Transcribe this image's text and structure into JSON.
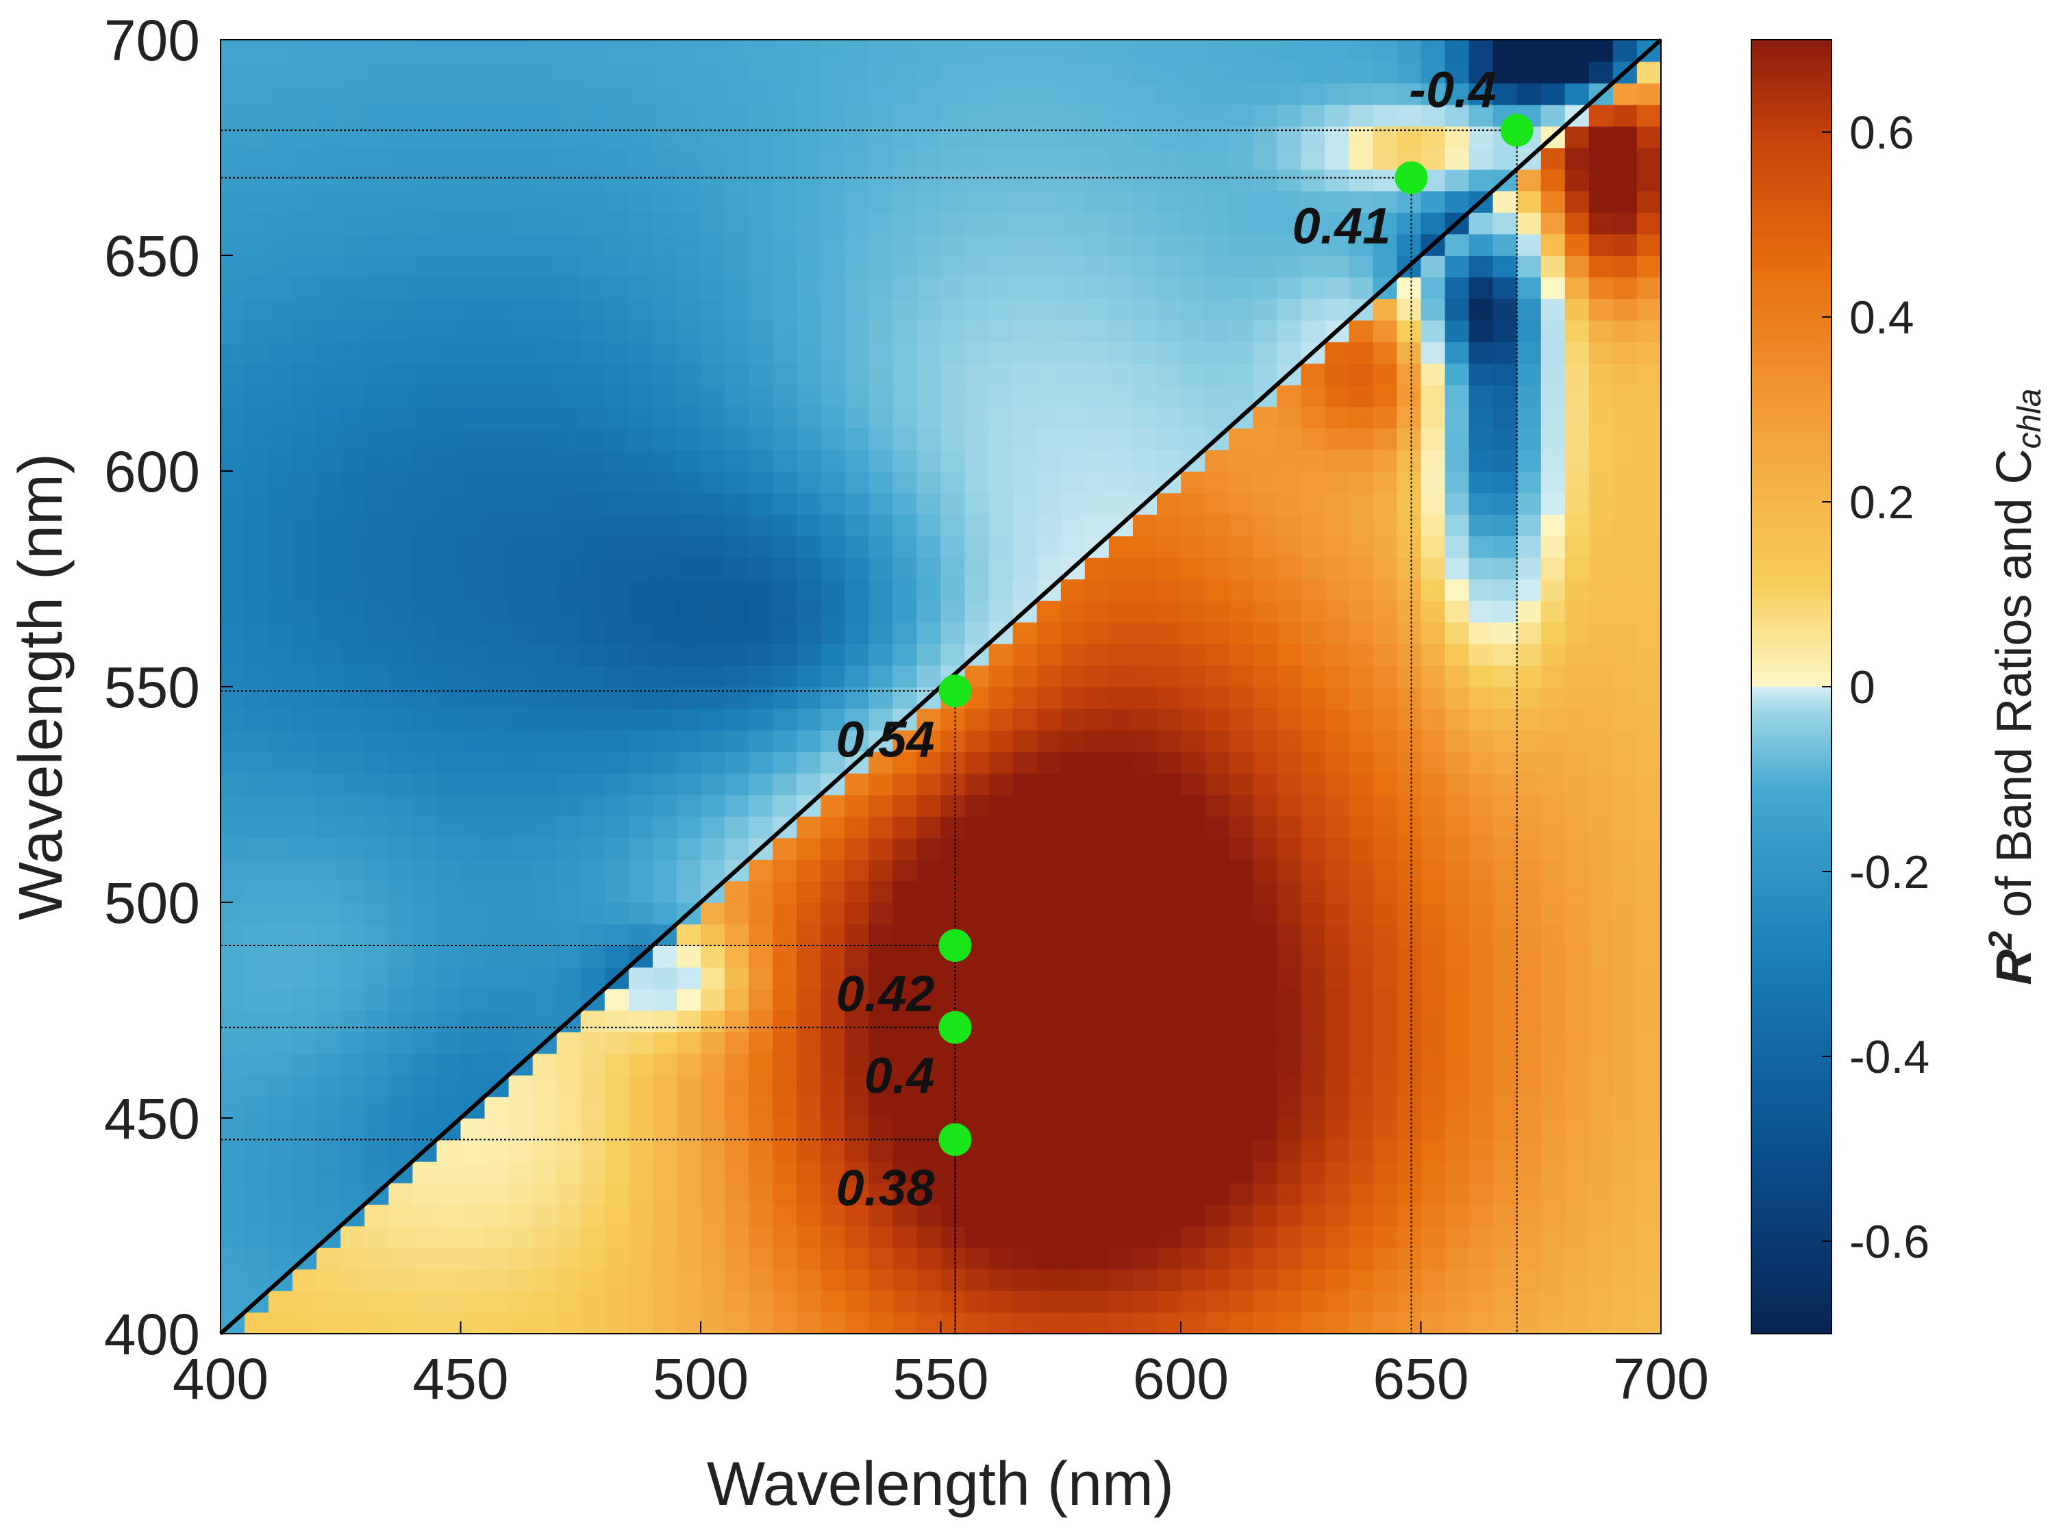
{
  "chart_data": {
    "type": "heatmap",
    "title": "",
    "xlabel": "Wavelength (nm)",
    "ylabel": "Wavelength (nm)",
    "xlim": [
      400,
      700
    ],
    "ylim": [
      400,
      700
    ],
    "x_ticks": [
      400,
      450,
      500,
      550,
      600,
      650,
      700
    ],
    "y_ticks": [
      400,
      450,
      500,
      550,
      600,
      650,
      700
    ],
    "diagonal_line": {
      "from": [
        400,
        400
      ],
      "to": [
        700,
        700
      ]
    },
    "colorbar": {
      "label_prefix": "R",
      "label_sup": "2",
      "label_mid": " of Band Ratios and C",
      "label_sub": "chla",
      "range": [
        -0.7,
        0.7
      ],
      "ticks": [
        -0.6,
        -0.4,
        -0.2,
        0,
        0.2,
        0.4,
        0.6
      ],
      "tick_labels": [
        "-0.6",
        "-0.4",
        "-0.2",
        "0",
        "0.2",
        "0.4",
        "0.6"
      ],
      "positive_colors": [
        "#fdf8c8",
        "#f7cd5a",
        "#f3a03c",
        "#e8700f",
        "#c9440b",
        "#8b1c0c"
      ],
      "negative_colors": [
        "#d7eef5",
        "#9bd5e6",
        "#45a9d0",
        "#1a7eb8",
        "#0b4f8e",
        "#082453"
      ]
    },
    "highlighted_points": [
      {
        "x": 553,
        "y": 549,
        "label": "0.54"
      },
      {
        "x": 553,
        "y": 490,
        "label": "0.42"
      },
      {
        "x": 553,
        "y": 471,
        "label": "0.4"
      },
      {
        "x": 553,
        "y": 445,
        "label": "0.38"
      },
      {
        "x": 648,
        "y": 668,
        "label": "0.41"
      },
      {
        "x": 670,
        "y": 679,
        "label": "-0.4"
      }
    ],
    "marker_color": "#19e619",
    "field_features": [
      {
        "x": 560,
        "y": 520,
        "r2": 0.55,
        "sx": 55,
        "sy": 110
      },
      {
        "x": 610,
        "y": 480,
        "r2": 0.35,
        "sx": 70,
        "sy": 90
      },
      {
        "x": 575,
        "y": 440,
        "r2": 0.2,
        "sx": 60,
        "sy": 50
      },
      {
        "x": 690,
        "y": 670,
        "r2": 0.65,
        "sx": 14,
        "sy": 28
      },
      {
        "x": 650,
        "y": 675,
        "r2": 0.45,
        "sx": 22,
        "sy": 9
      },
      {
        "x": 640,
        "y": 625,
        "r2": 0.3,
        "sx": 18,
        "sy": 20
      },
      {
        "x": 665,
        "y": 610,
        "r2": -0.7,
        "sx": 12,
        "sy": 45
      },
      {
        "x": 660,
        "y": 640,
        "r2": -0.45,
        "sx": 16,
        "sy": 16
      },
      {
        "x": 680,
        "y": 695,
        "r2": -0.85,
        "sx": 18,
        "sy": 10
      },
      {
        "x": 535,
        "y": 560,
        "r2": -0.4,
        "sx": 45,
        "sy": 40
      },
      {
        "x": 470,
        "y": 580,
        "r2": -0.2,
        "sx": 110,
        "sy": 80
      },
      {
        "x": 495,
        "y": 482,
        "r2": -0.3,
        "sx": 16,
        "sy": 12
      },
      {
        "x": 450,
        "y": 450,
        "r2": -0.15,
        "sx": 50,
        "sy": 40
      },
      {
        "x": 420,
        "y": 480,
        "r2": 0.1,
        "sx": 30,
        "sy": 40
      }
    ]
  }
}
